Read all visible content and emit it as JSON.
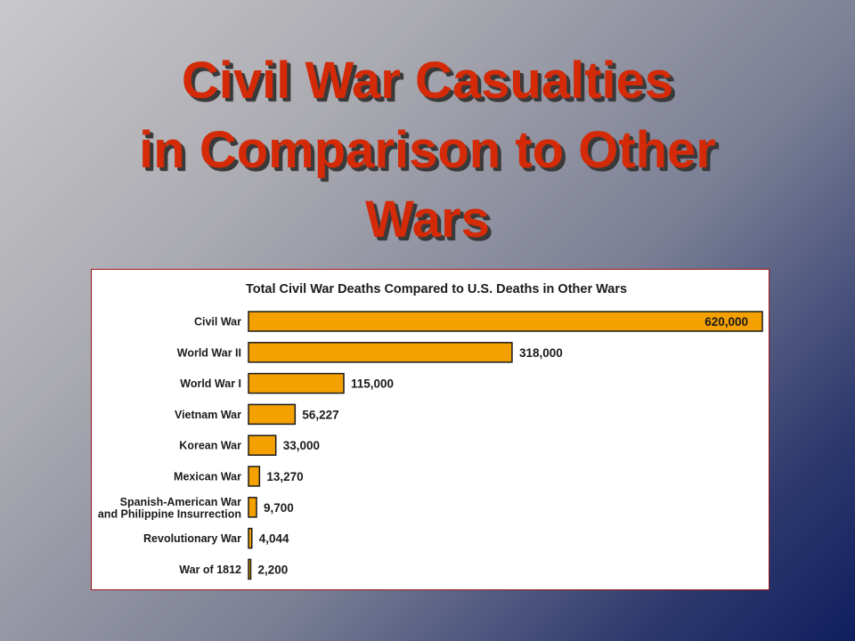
{
  "slide": {
    "title_lines": [
      "Civil War Casualties",
      "in Comparison to Other",
      "Wars"
    ]
  },
  "chart_data": {
    "type": "bar",
    "orientation": "horizontal",
    "title": "Total Civil War Deaths Compared to U.S. Deaths in Other Wars",
    "xlabel": "",
    "ylabel": "",
    "categories": [
      "Civil War",
      "World War II",
      "World War I",
      "Vietnam War",
      "Korean War",
      "Mexican War",
      "Spanish-American War\nand Philippine Insurrection",
      "Revolutionary War",
      "War of 1812"
    ],
    "values": [
      620000,
      318000,
      115000,
      56227,
      33000,
      13270,
      9700,
      4044,
      2200
    ],
    "value_labels": [
      "620,000",
      "318,000",
      "115,000",
      "56,227",
      "33,000",
      "13,270",
      "9,700",
      "4,044",
      "2,200"
    ],
    "xlim": [
      0,
      620000
    ],
    "grid": false,
    "legend": "none",
    "colors": {
      "bar_fill": "#f4a000",
      "bar_stroke": "#1a1a1a",
      "text": "#1a1a1a",
      "title_red": "#d42a07",
      "panel_border": "#9b1414"
    }
  }
}
